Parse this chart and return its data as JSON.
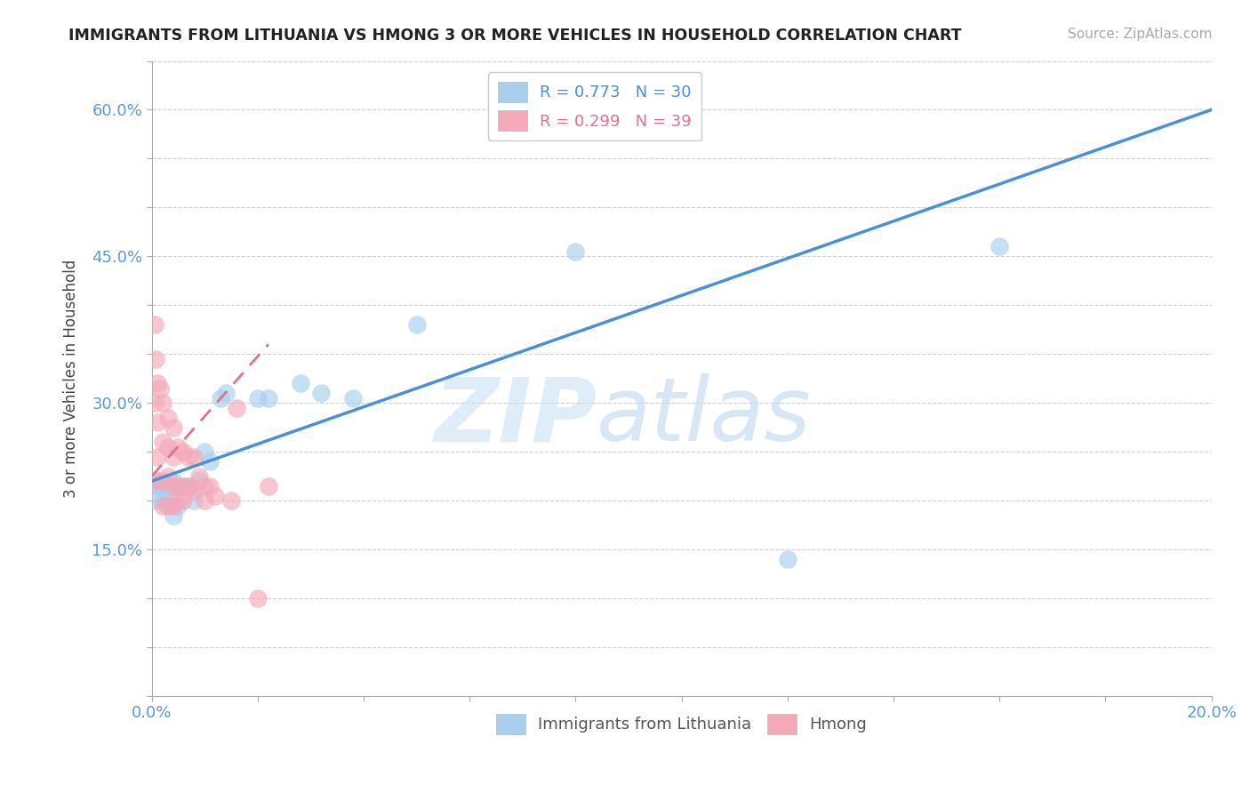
{
  "title": "IMMIGRANTS FROM LITHUANIA VS HMONG 3 OR MORE VEHICLES IN HOUSEHOLD CORRELATION CHART",
  "source_text": "Source: ZipAtlas.com",
  "ylabel": "3 or more Vehicles in Household",
  "xlim": [
    0.0,
    0.2
  ],
  "ylim": [
    0.0,
    0.65
  ],
  "x_tick_positions": [
    0.0,
    0.02,
    0.04,
    0.06,
    0.08,
    0.1,
    0.12,
    0.14,
    0.16,
    0.18,
    0.2
  ],
  "x_tick_labels": [
    "0.0%",
    "",
    "",
    "",
    "",
    "",
    "",
    "",
    "",
    "",
    "20.0%"
  ],
  "y_tick_positions": [
    0.0,
    0.05,
    0.1,
    0.15,
    0.2,
    0.25,
    0.3,
    0.35,
    0.4,
    0.45,
    0.5,
    0.55,
    0.6,
    0.65
  ],
  "y_tick_labels": [
    "",
    "",
    "",
    "15.0%",
    "",
    "",
    "30.0%",
    "",
    "",
    "45.0%",
    "",
    "",
    "60.0%",
    ""
  ],
  "legend_blue_label": "R = 0.773   N = 30",
  "legend_pink_label": "R = 0.299   N = 39",
  "bottom_legend_blue": "Immigrants from Lithuania",
  "bottom_legend_pink": "Hmong",
  "blue_color": "#A8D0EE",
  "pink_color": "#F4A8B8",
  "blue_line_color": "#4A90D9",
  "pink_line_color": "#E07090",
  "watermark_zip": "ZIP",
  "watermark_atlas": "atlas",
  "blue_x": [
    0.0008,
    0.001,
    0.001,
    0.0015,
    0.002,
    0.002,
    0.003,
    0.003,
    0.003,
    0.004,
    0.004,
    0.005,
    0.005,
    0.006,
    0.007,
    0.008,
    0.009,
    0.01,
    0.011,
    0.013,
    0.014,
    0.02,
    0.022,
    0.028,
    0.032,
    0.038,
    0.05,
    0.08,
    0.12,
    0.16
  ],
  "blue_y": [
    0.22,
    0.215,
    0.2,
    0.215,
    0.215,
    0.2,
    0.215,
    0.2,
    0.195,
    0.22,
    0.185,
    0.215,
    0.195,
    0.215,
    0.215,
    0.2,
    0.22,
    0.25,
    0.24,
    0.305,
    0.31,
    0.305,
    0.305,
    0.32,
    0.31,
    0.305,
    0.38,
    0.455,
    0.14,
    0.46
  ],
  "pink_x": [
    0.0005,
    0.0005,
    0.0008,
    0.001,
    0.001,
    0.001,
    0.001,
    0.0015,
    0.002,
    0.002,
    0.002,
    0.002,
    0.003,
    0.003,
    0.003,
    0.003,
    0.004,
    0.004,
    0.004,
    0.004,
    0.005,
    0.005,
    0.005,
    0.006,
    0.006,
    0.006,
    0.007,
    0.007,
    0.008,
    0.008,
    0.009,
    0.01,
    0.01,
    0.011,
    0.012,
    0.015,
    0.016,
    0.02,
    0.022
  ],
  "pink_y": [
    0.38,
    0.3,
    0.345,
    0.32,
    0.28,
    0.245,
    0.22,
    0.315,
    0.3,
    0.26,
    0.22,
    0.195,
    0.285,
    0.255,
    0.225,
    0.195,
    0.275,
    0.245,
    0.215,
    0.195,
    0.255,
    0.215,
    0.2,
    0.25,
    0.215,
    0.2,
    0.245,
    0.215,
    0.245,
    0.21,
    0.225,
    0.2,
    0.215,
    0.215,
    0.205,
    0.2,
    0.295,
    0.1,
    0.215
  ],
  "blue_trend_x0": 0.0,
  "blue_trend_y0": 0.22,
  "blue_trend_x1": 0.2,
  "blue_trend_y1": 0.6,
  "pink_trend_x0": 0.0,
  "pink_trend_y0": 0.225,
  "pink_trend_x1": 0.022,
  "pink_trend_y1": 0.36
}
